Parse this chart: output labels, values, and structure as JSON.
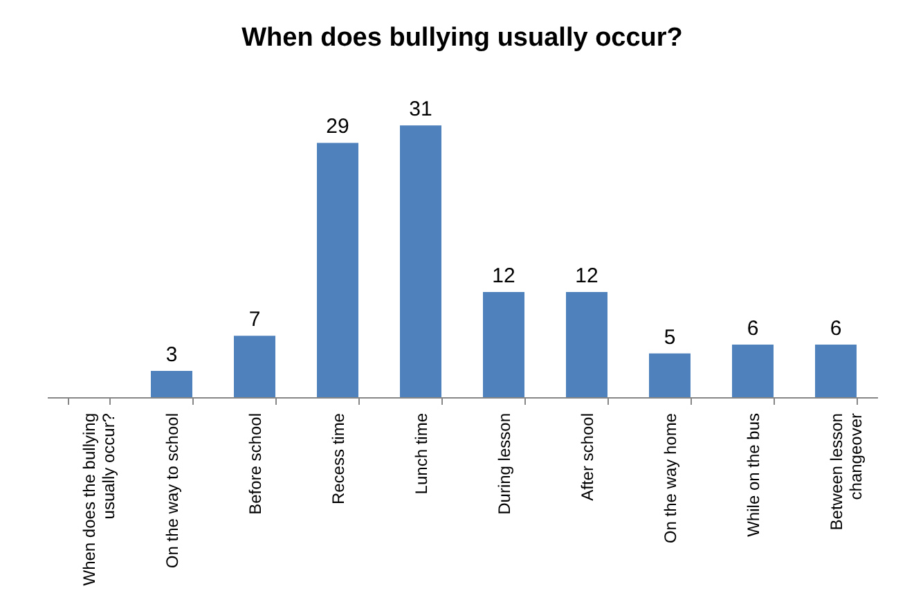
{
  "chart_data": {
    "type": "bar",
    "title": "When does bullying usually occur?",
    "categories": [
      "When does the bullying usually occur?",
      "On the way to school",
      "Before school",
      "Recess time",
      "Lunch time",
      "During lesson",
      "After school",
      "On the way home",
      "While on the bus",
      "Between lesson changeover"
    ],
    "values": [
      null,
      3,
      7,
      29,
      31,
      12,
      12,
      5,
      6,
      6
    ],
    "color": "#4f81bd",
    "data_labels": true,
    "tick_labels": "x"
  }
}
